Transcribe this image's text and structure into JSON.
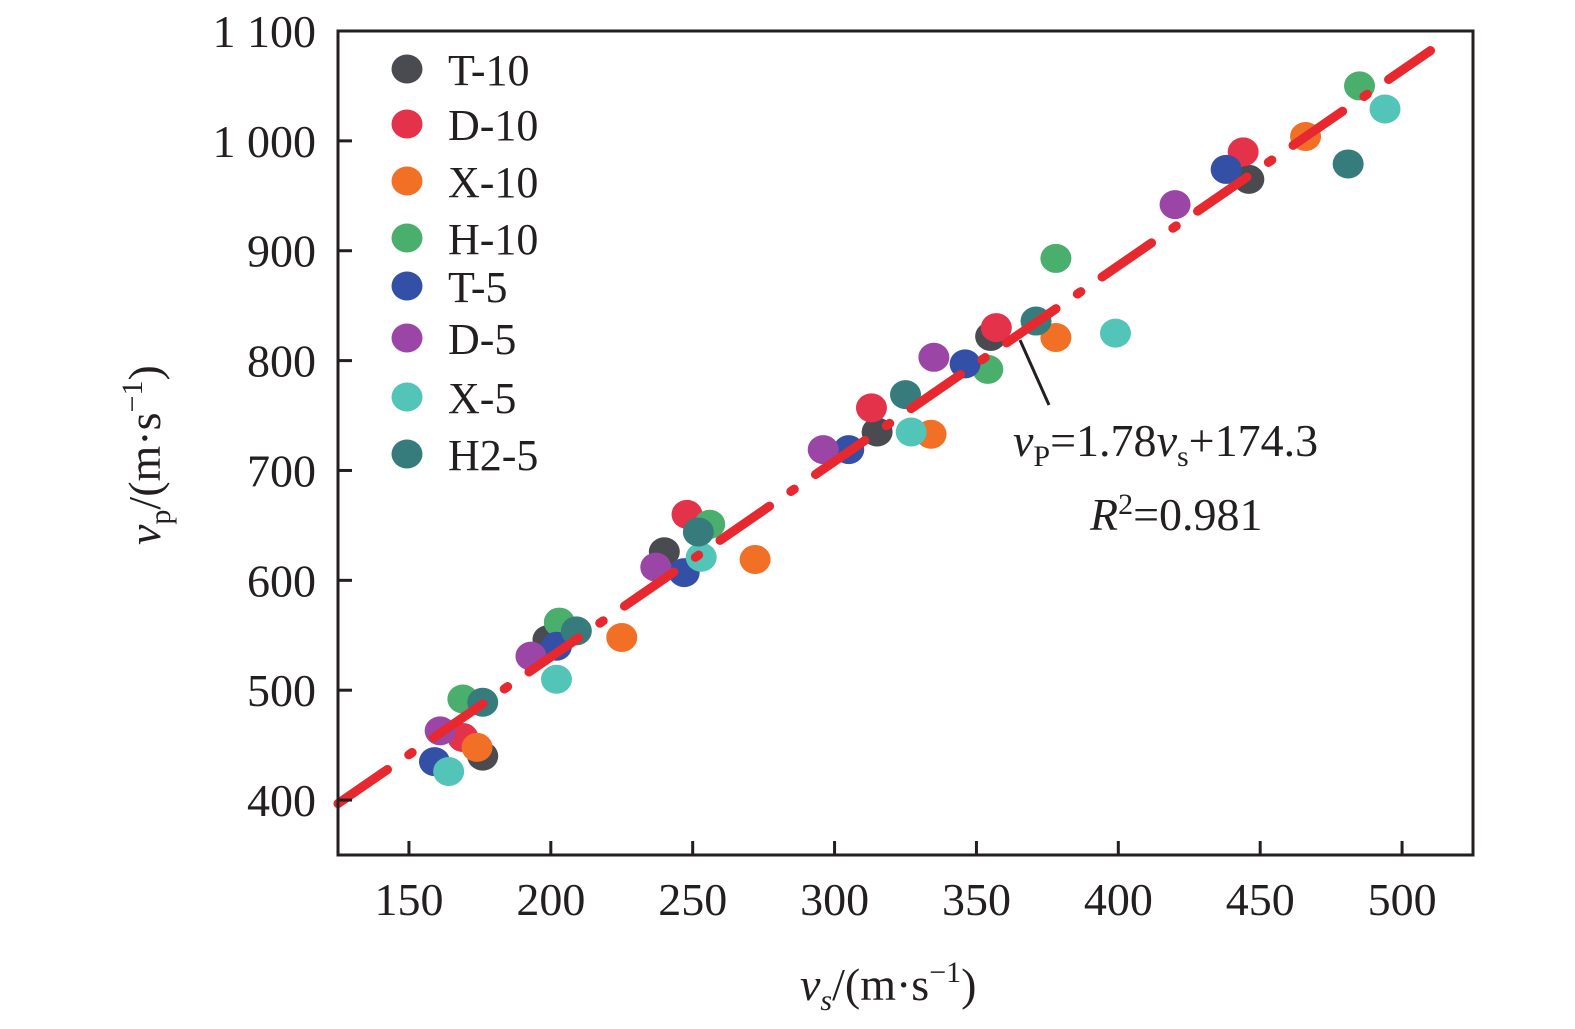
{
  "chart_data": {
    "type": "scatter",
    "title": "",
    "xlabel": {
      "var": "v",
      "sub": "s",
      "unit": "/(m·s",
      "exp": "−1",
      "close": ")"
    },
    "ylabel": {
      "var": "v",
      "sub": "p",
      "unit": "/(m·s",
      "exp": "−1",
      "close": ")"
    },
    "xlim": [
      125,
      525
    ],
    "ylim": [
      350,
      1100
    ],
    "xticks": [
      150,
      200,
      250,
      300,
      350,
      400,
      450,
      500
    ],
    "yticks": [
      400,
      500,
      600,
      700,
      800,
      900,
      1000,
      1100
    ],
    "xtick_labels": [
      "150",
      "200",
      "250",
      "300",
      "350",
      "400",
      "450",
      "500"
    ],
    "ytick_labels": [
      "400",
      "500",
      "600",
      "700",
      "800",
      "900",
      "1 000",
      "1 100"
    ],
    "grid": false,
    "legend_position": "top-left",
    "series": [
      {
        "name": "T-10",
        "color": "#4a4b50",
        "points": [
          [
            176,
            440
          ],
          [
            199,
            546
          ],
          [
            240,
            626
          ],
          [
            315,
            735
          ],
          [
            355,
            822
          ],
          [
            446,
            965
          ]
        ]
      },
      {
        "name": "D-10",
        "color": "#e4324a",
        "points": [
          [
            169,
            457
          ],
          [
            248,
            660
          ],
          [
            313,
            757
          ],
          [
            357,
            830
          ],
          [
            444,
            990
          ]
        ]
      },
      {
        "name": "X-10",
        "color": "#f26f26",
        "points": [
          [
            174,
            448
          ],
          [
            225,
            548
          ],
          [
            272,
            619
          ],
          [
            334,
            733
          ],
          [
            378,
            821
          ],
          [
            466,
            1004
          ]
        ]
      },
      {
        "name": "H-10",
        "color": "#4aaf6c",
        "points": [
          [
            169,
            492
          ],
          [
            203,
            562
          ],
          [
            256,
            651
          ],
          [
            354,
            792
          ],
          [
            378,
            893
          ],
          [
            485,
            1050
          ]
        ]
      },
      {
        "name": "T-5",
        "color": "#3450a6",
        "points": [
          [
            159,
            435
          ],
          [
            202,
            540
          ],
          [
            247,
            607
          ],
          [
            305,
            719
          ],
          [
            346,
            797
          ],
          [
            438,
            974
          ]
        ]
      },
      {
        "name": "D-5",
        "color": "#9b46a6",
        "points": [
          [
            161,
            463
          ],
          [
            193,
            531
          ],
          [
            237,
            612
          ],
          [
            296,
            719
          ],
          [
            335,
            803
          ],
          [
            420,
            942
          ]
        ]
      },
      {
        "name": "X-5",
        "color": "#52c4b8",
        "points": [
          [
            164,
            426
          ],
          [
            202,
            510
          ],
          [
            253,
            621
          ],
          [
            327,
            735
          ],
          [
            399,
            825
          ],
          [
            494,
            1029
          ]
        ]
      },
      {
        "name": "H2-5",
        "color": "#367c7c",
        "points": [
          [
            176,
            489
          ],
          [
            209,
            554
          ],
          [
            252,
            644
          ],
          [
            325,
            769
          ],
          [
            371,
            836
          ],
          [
            481,
            979
          ]
        ]
      }
    ],
    "fit": {
      "slope": 1.78,
      "intercept": 174.3,
      "x_range": [
        125,
        510
      ],
      "color": "#e8282f",
      "style": "dash-dot",
      "equation": {
        "lhs_var": "v",
        "lhs_sub": "P",
        "eq": "=1.78",
        "rhs_var": "v",
        "rhs_sub": "s",
        "rest": "+174.3"
      },
      "r2": {
        "var": "R",
        "exp": "2",
        "rest": "=0.981"
      },
      "annotation_anchor": [
        365,
        822
      ]
    }
  }
}
